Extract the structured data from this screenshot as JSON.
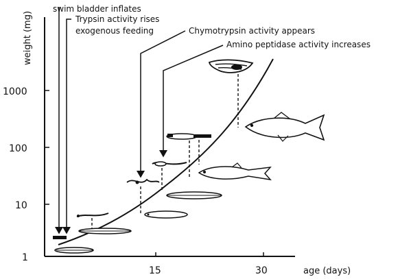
{
  "chart_data": {
    "type": "line",
    "ylabel": "weight (mg)",
    "xlabel": "age (days)",
    "y_ticks": [
      "1000",
      "100",
      "10",
      "1"
    ],
    "x_ticks": [
      "15",
      "30"
    ],
    "y_scale": "log",
    "annotations": [
      "swim bladder inflates",
      "Trypsin activity rises",
      "exogenous feeding",
      "Chymotrypsin activity appears",
      "Amino peptidase activity increases"
    ]
  },
  "colors": {
    "ink": "#111111",
    "background": "#ffffff"
  }
}
